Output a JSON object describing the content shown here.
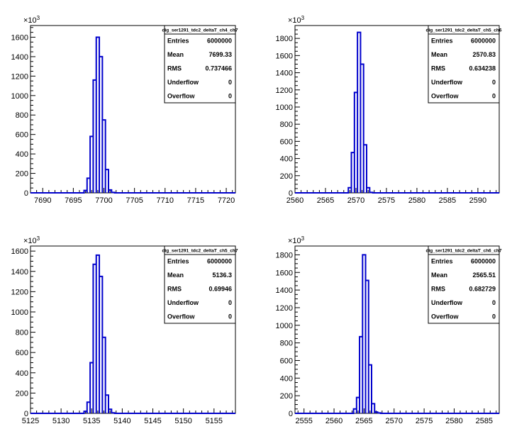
{
  "chart_data": [
    {
      "type": "histogram",
      "stats": {
        "title": "dig_ser1291_tdc2_deltaT_ch4_ch7",
        "rows": [
          {
            "label": "Entries",
            "value": "6000000"
          },
          {
            "label": "Mean",
            "value": "7699.33"
          },
          {
            "label": "RMS",
            "value": "0.737466"
          },
          {
            "label": "Underflow",
            "value": "0"
          },
          {
            "label": "Overflow",
            "value": "0"
          }
        ]
      },
      "y_multiplier": "×10",
      "y_exponent": "3",
      "xlim": [
        7688,
        7721.5
      ],
      "ylim": [
        0,
        1720
      ],
      "x_ticks": [
        7690,
        7695,
        7700,
        7705,
        7710,
        7715,
        7720
      ],
      "y_ticks": [
        0,
        200,
        400,
        600,
        800,
        1000,
        1200,
        1400,
        1600
      ],
      "x_tick_labels": [
        "7690",
        "7695",
        "7700",
        "7705",
        "7710",
        "7715",
        "7720"
      ],
      "y_tick_labels": [
        "0",
        "200",
        "400",
        "600",
        "800",
        "1000",
        "1200",
        "1400",
        "1600"
      ],
      "bin_width": 0.5,
      "bins": [
        {
          "x": 7697.0,
          "y": 25
        },
        {
          "x": 7697.5,
          "y": 150
        },
        {
          "x": 7698.0,
          "y": 580
        },
        {
          "x": 7698.5,
          "y": 1160
        },
        {
          "x": 7699.0,
          "y": 1600
        },
        {
          "x": 7699.5,
          "y": 1400
        },
        {
          "x": 7700.0,
          "y": 750
        },
        {
          "x": 7700.5,
          "y": 240
        },
        {
          "x": 7701.0,
          "y": 30
        },
        {
          "x": 7701.5,
          "y": 5
        }
      ]
    },
    {
      "type": "histogram",
      "stats": {
        "title": "dig_ser1291_tdc2_deltaT_ch5_ch6",
        "rows": [
          {
            "label": "Entries",
            "value": "6000000"
          },
          {
            "label": "Mean",
            "value": "2570.83"
          },
          {
            "label": "RMS",
            "value": "0.634238"
          },
          {
            "label": "Underflow",
            "value": "0"
          },
          {
            "label": "Overflow",
            "value": "0"
          }
        ]
      },
      "y_multiplier": "×10",
      "y_exponent": "3",
      "xlim": [
        2560,
        2593.5
      ],
      "ylim": [
        0,
        1950
      ],
      "x_ticks": [
        2560,
        2565,
        2570,
        2575,
        2580,
        2585,
        2590
      ],
      "y_ticks": [
        0,
        200,
        400,
        600,
        800,
        1000,
        1200,
        1400,
        1600,
        1800
      ],
      "x_tick_labels": [
        "2560",
        "2565",
        "2570",
        "2575",
        "2580",
        "2585",
        "2590"
      ],
      "y_tick_labels": [
        "0",
        "200",
        "400",
        "600",
        "800",
        "1000",
        "1200",
        "1400",
        "1600",
        "1800"
      ],
      "bin_width": 0.5,
      "bins": [
        {
          "x": 2569.0,
          "y": 60
        },
        {
          "x": 2569.5,
          "y": 470
        },
        {
          "x": 2570.0,
          "y": 1170
        },
        {
          "x": 2570.5,
          "y": 1870
        },
        {
          "x": 2571.0,
          "y": 1500
        },
        {
          "x": 2571.5,
          "y": 560
        },
        {
          "x": 2572.0,
          "y": 60
        },
        {
          "x": 2572.5,
          "y": 5
        }
      ]
    },
    {
      "type": "histogram",
      "stats": {
        "title": "dig_ser1291_tdc2_deltaT_ch5_ch7",
        "rows": [
          {
            "label": "Entries",
            "value": "6000000"
          },
          {
            "label": "Mean",
            "value": "5136.3"
          },
          {
            "label": "RMS",
            "value": "0.69946"
          },
          {
            "label": "Underflow",
            "value": "0"
          },
          {
            "label": "Overflow",
            "value": "0"
          }
        ]
      },
      "y_multiplier": "×10",
      "y_exponent": "3",
      "xlim": [
        5125,
        5158.5
      ],
      "ylim": [
        0,
        1650
      ],
      "x_ticks": [
        5125,
        5130,
        5135,
        5140,
        5145,
        5150,
        5155
      ],
      "y_ticks": [
        0,
        200,
        400,
        600,
        800,
        1000,
        1200,
        1400,
        1600
      ],
      "x_tick_labels": [
        "5125",
        "5130",
        "5135",
        "5140",
        "5145",
        "5150",
        "5155"
      ],
      "y_tick_labels": [
        "0",
        "200",
        "400",
        "600",
        "800",
        "1000",
        "1200",
        "1400",
        "1600"
      ],
      "bin_width": 0.5,
      "bins": [
        {
          "x": 5134.0,
          "y": 20
        },
        {
          "x": 5134.5,
          "y": 110
        },
        {
          "x": 5135.0,
          "y": 500
        },
        {
          "x": 5135.5,
          "y": 1470
        },
        {
          "x": 5136.0,
          "y": 1560
        },
        {
          "x": 5136.5,
          "y": 1350
        },
        {
          "x": 5137.0,
          "y": 750
        },
        {
          "x": 5137.5,
          "y": 180
        },
        {
          "x": 5138.0,
          "y": 40
        },
        {
          "x": 5138.5,
          "y": 5
        }
      ]
    },
    {
      "type": "histogram",
      "stats": {
        "title": "dig_ser1291_tdc2_deltaT_ch6_ch7",
        "rows": [
          {
            "label": "Entries",
            "value": "6000000"
          },
          {
            "label": "Mean",
            "value": "2565.51"
          },
          {
            "label": "RMS",
            "value": "0.682729"
          },
          {
            "label": "Underflow",
            "value": "0"
          },
          {
            "label": "Overflow",
            "value": "0"
          }
        ]
      },
      "y_multiplier": "×10",
      "y_exponent": "3",
      "xlim": [
        2553.5,
        2587.5
      ],
      "ylim": [
        0,
        1900
      ],
      "x_ticks": [
        2555,
        2560,
        2565,
        2570,
        2575,
        2580,
        2585
      ],
      "y_ticks": [
        0,
        200,
        400,
        600,
        800,
        1000,
        1200,
        1400,
        1600,
        1800
      ],
      "x_tick_labels": [
        "2555",
        "2560",
        "2565",
        "2570",
        "2575",
        "2580",
        "2585"
      ],
      "y_tick_labels": [
        "0",
        "200",
        "400",
        "600",
        "800",
        "1000",
        "1200",
        "1400",
        "1600",
        "1800"
      ],
      "bin_width": 0.5,
      "bins": [
        {
          "x": 2563.5,
          "y": 50
        },
        {
          "x": 2564.0,
          "y": 180
        },
        {
          "x": 2564.5,
          "y": 870
        },
        {
          "x": 2565.0,
          "y": 1800
        },
        {
          "x": 2565.5,
          "y": 1510
        },
        {
          "x": 2566.0,
          "y": 550
        },
        {
          "x": 2566.5,
          "y": 110
        },
        {
          "x": 2567.0,
          "y": 15
        },
        {
          "x": 2567.5,
          "y": 5
        }
      ]
    }
  ],
  "colors": {
    "series": "#0000cc",
    "axis": "#000000",
    "background": "#ffffff"
  }
}
